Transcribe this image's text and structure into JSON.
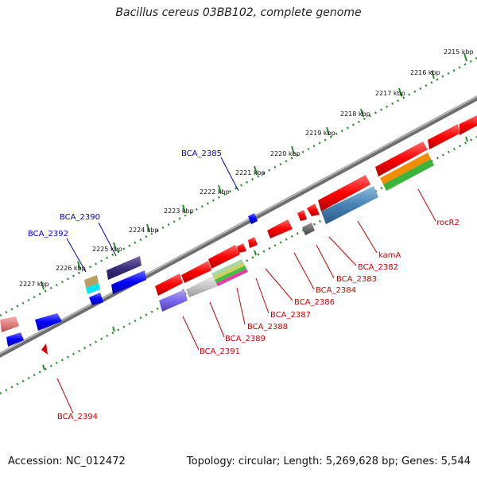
{
  "title": "Bacillus cereus 03BB102, complete genome",
  "footer": {
    "accession": "Accession: NC_012472",
    "info": "Topology: circular; Length: 5,269,628 bp; Genes: 5,544"
  },
  "colors": {
    "backbone": "#7a7a7a",
    "scale_dots": "#2e8b2e",
    "forward_label": "#0000cc",
    "reverse_label": "#cc0000"
  },
  "scale_ticks": [
    {
      "label": "2215 kbp"
    },
    {
      "label": "2216 kbp"
    },
    {
      "label": "2217 kbp"
    },
    {
      "label": "2218 kbp"
    },
    {
      "label": "2219 kbp"
    },
    {
      "label": "2220 kbp"
    },
    {
      "label": "2221 kbp"
    },
    {
      "label": "2222 kbp"
    },
    {
      "label": "2223 kbp"
    },
    {
      "label": "2224 kbp"
    },
    {
      "label": "2225 kbp"
    },
    {
      "label": "2226 kbp"
    },
    {
      "label": "2227 kbp"
    }
  ],
  "forward_labels": [
    {
      "text": "BCA_2385"
    },
    {
      "text": "BCA_2390"
    },
    {
      "text": "BCA_2392"
    }
  ],
  "reverse_labels": [
    {
      "text": "rocR2"
    },
    {
      "text": "kamA"
    },
    {
      "text": "BCA_2382"
    },
    {
      "text": "BCA_2383"
    },
    {
      "text": "BCA_2384"
    },
    {
      "text": "BCA_2386"
    },
    {
      "text": "BCA_2387"
    },
    {
      "text": "BCA_2388"
    },
    {
      "text": "BCA_2389"
    },
    {
      "text": "BCA_2391"
    },
    {
      "text": "BCA_2394"
    }
  ]
}
